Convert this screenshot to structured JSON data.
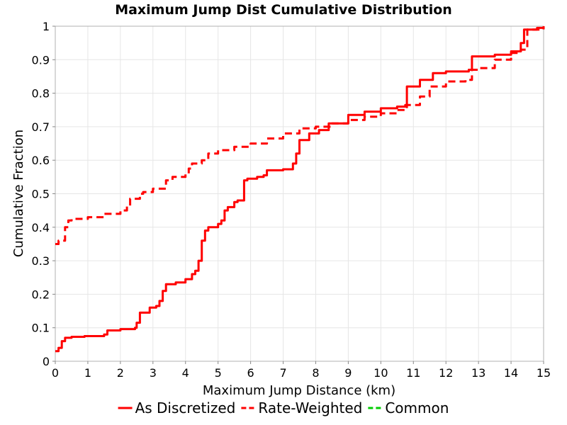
{
  "chart_data": {
    "type": "line",
    "title": "Maximum Jump Dist Cumulative Distribution",
    "xlabel": "Maximum Jump Distance (km)",
    "ylabel": "Cumulative Fraction",
    "xlim": [
      0,
      15
    ],
    "ylim": [
      0,
      1
    ],
    "xticks": [
      "0",
      "1",
      "2",
      "3",
      "4",
      "5",
      "6",
      "7",
      "8",
      "9",
      "10",
      "11",
      "12",
      "13",
      "14",
      "15"
    ],
    "yticks": [
      "0",
      "0.1",
      "0.2",
      "0.3",
      "0.4",
      "0.5",
      "0.6",
      "0.7",
      "0.8",
      "0.9",
      "1"
    ],
    "grid": true,
    "legend_position": "bottom",
    "series": [
      {
        "name": "As Discretized",
        "color": "#ff0000",
        "style": "solid",
        "x": [
          0,
          0.1,
          0.2,
          0.3,
          0.5,
          0.9,
          1.5,
          1.6,
          2.0,
          2.45,
          2.5,
          2.6,
          2.9,
          3.1,
          3.2,
          3.3,
          3.4,
          3.7,
          4.0,
          4.2,
          4.3,
          4.4,
          4.5,
          4.6,
          4.7,
          5.0,
          5.1,
          5.2,
          5.3,
          5.5,
          5.6,
          5.8,
          5.9,
          6.2,
          6.4,
          6.5,
          7.0,
          7.3,
          7.4,
          7.5,
          7.8,
          8.1,
          8.4,
          9.0,
          9.5,
          10.0,
          10.5,
          10.75,
          10.8,
          11.2,
          11.6,
          12.0,
          12.7,
          12.8,
          13.5,
          14.0,
          14.3,
          14.4,
          14.8,
          15.0
        ],
        "y": [
          0.03,
          0.04,
          0.06,
          0.07,
          0.073,
          0.075,
          0.08,
          0.092,
          0.096,
          0.1,
          0.115,
          0.145,
          0.16,
          0.165,
          0.18,
          0.21,
          0.23,
          0.235,
          0.245,
          0.26,
          0.27,
          0.3,
          0.36,
          0.39,
          0.4,
          0.41,
          0.42,
          0.45,
          0.46,
          0.475,
          0.48,
          0.54,
          0.545,
          0.55,
          0.555,
          0.57,
          0.573,
          0.59,
          0.62,
          0.66,
          0.68,
          0.69,
          0.71,
          0.735,
          0.745,
          0.755,
          0.76,
          0.765,
          0.82,
          0.84,
          0.86,
          0.865,
          0.87,
          0.91,
          0.915,
          0.925,
          0.95,
          0.99,
          0.995,
          1.0
        ]
      },
      {
        "name": "Rate-Weighted",
        "color": "#ff0000",
        "style": "dashed",
        "x": [
          0,
          0.1,
          0.3,
          0.4,
          0.5,
          1.0,
          1.5,
          2.0,
          2.2,
          2.3,
          2.6,
          2.7,
          3.0,
          3.4,
          3.6,
          4.0,
          4.1,
          4.2,
          4.5,
          4.7,
          5.0,
          5.5,
          6.0,
          6.5,
          7.0,
          7.5,
          8.0,
          8.5,
          9.0,
          9.5,
          10.0,
          10.5,
          10.8,
          11.2,
          11.5,
          12.0,
          12.6,
          12.8,
          13.0,
          13.5,
          14.0,
          14.3,
          14.5,
          15.0
        ],
        "y": [
          0.35,
          0.36,
          0.4,
          0.42,
          0.425,
          0.43,
          0.44,
          0.45,
          0.465,
          0.485,
          0.5,
          0.505,
          0.515,
          0.54,
          0.55,
          0.56,
          0.575,
          0.59,
          0.6,
          0.62,
          0.63,
          0.64,
          0.65,
          0.665,
          0.68,
          0.695,
          0.7,
          0.71,
          0.72,
          0.73,
          0.74,
          0.75,
          0.765,
          0.79,
          0.82,
          0.835,
          0.84,
          0.87,
          0.875,
          0.9,
          0.92,
          0.93,
          0.99,
          1.0
        ]
      },
      {
        "name": "Common",
        "color": "#00cc00",
        "style": "dashed",
        "x": [],
        "y": []
      }
    ]
  }
}
